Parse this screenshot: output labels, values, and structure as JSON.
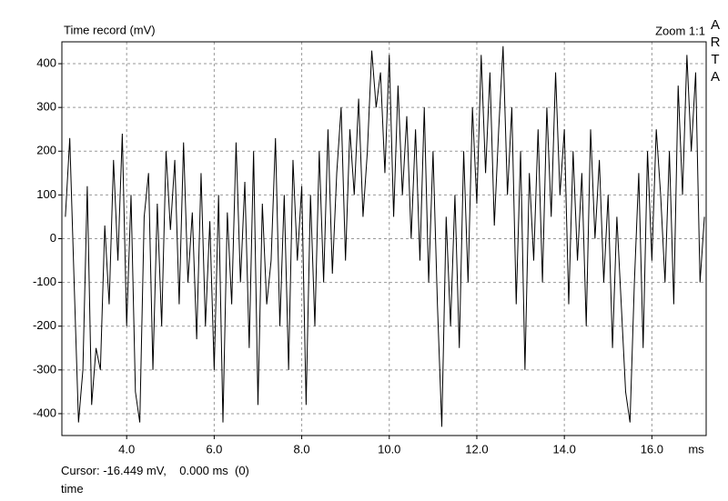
{
  "chart_data": {
    "type": "line",
    "title": "Time record (mV)",
    "zoom_label": "Zoom 1:1",
    "brand": "ARTA",
    "x_unit": "ms",
    "cursor_text": "Cursor: -16.449 mV,    0.000 ms  (0)",
    "mode_label": "time",
    "color": "#000000",
    "grid": true,
    "xlim": [
      2.52,
      17.24
    ],
    "ylim": [
      -450,
      450
    ],
    "xticks": [
      {
        "value": 4,
        "label": "4.0"
      },
      {
        "value": 6,
        "label": "6.0"
      },
      {
        "value": 8,
        "label": "8.0"
      },
      {
        "value": 10,
        "label": "10.0"
      },
      {
        "value": 12,
        "label": "12.0"
      },
      {
        "value": 14,
        "label": "14.0"
      },
      {
        "value": 16,
        "label": "16.0"
      }
    ],
    "yticks": [
      -400,
      -300,
      -200,
      -100,
      0,
      100,
      200,
      300,
      400
    ],
    "x": [
      2.6,
      2.7,
      2.8,
      2.9,
      3.0,
      3.1,
      3.2,
      3.3,
      3.4,
      3.5,
      3.6,
      3.7,
      3.8,
      3.9,
      4.0,
      4.1,
      4.2,
      4.3,
      4.4,
      4.5,
      4.6,
      4.7,
      4.8,
      4.9,
      5.0,
      5.1,
      5.2,
      5.3,
      5.4,
      5.5,
      5.6,
      5.7,
      5.8,
      5.9,
      6.0,
      6.1,
      6.2,
      6.3,
      6.4,
      6.5,
      6.6,
      6.7,
      6.8,
      6.9,
      7.0,
      7.1,
      7.2,
      7.3,
      7.4,
      7.5,
      7.6,
      7.7,
      7.8,
      7.9,
      8.0,
      8.1,
      8.2,
      8.3,
      8.4,
      8.5,
      8.6,
      8.7,
      8.8,
      8.9,
      9.0,
      9.1,
      9.2,
      9.3,
      9.4,
      9.5,
      9.6,
      9.7,
      9.8,
      9.9,
      10.0,
      10.1,
      10.2,
      10.3,
      10.4,
      10.5,
      10.6,
      10.7,
      10.8,
      10.9,
      11.0,
      11.1,
      11.2,
      11.3,
      11.4,
      11.5,
      11.6,
      11.7,
      11.8,
      11.9,
      12.0,
      12.1,
      12.2,
      12.3,
      12.4,
      12.5,
      12.6,
      12.7,
      12.8,
      12.9,
      13.0,
      13.1,
      13.2,
      13.3,
      13.4,
      13.5,
      13.6,
      13.7,
      13.8,
      13.9,
      14.0,
      14.1,
      14.2,
      14.3,
      14.4,
      14.5,
      14.6,
      14.7,
      14.8,
      14.9,
      15.0,
      15.1,
      15.2,
      15.3,
      15.4,
      15.5,
      15.6,
      15.7,
      15.8,
      15.9,
      16.0,
      16.1,
      16.2,
      16.3,
      16.4,
      16.5,
      16.6,
      16.7,
      16.8,
      16.9,
      17.0,
      17.1,
      17.2
    ],
    "values": [
      50,
      230,
      -100,
      -420,
      -300,
      120,
      -380,
      -250,
      -300,
      30,
      -150,
      180,
      -50,
      240,
      -200,
      100,
      -350,
      -420,
      50,
      150,
      -300,
      80,
      -200,
      200,
      20,
      180,
      -150,
      220,
      -100,
      60,
      -230,
      150,
      -200,
      40,
      -300,
      100,
      -420,
      60,
      -150,
      220,
      -100,
      130,
      -250,
      200,
      -380,
      80,
      -150,
      -50,
      230,
      -200,
      100,
      -300,
      180,
      -50,
      120,
      -380,
      100,
      -200,
      200,
      -100,
      250,
      -80,
      150,
      300,
      -50,
      250,
      100,
      320,
      50,
      200,
      430,
      300,
      380,
      150,
      420,
      50,
      350,
      100,
      280,
      0,
      250,
      -50,
      300,
      -100,
      200,
      -150,
      -430,
      50,
      -200,
      100,
      -250,
      200,
      -100,
      300,
      80,
      420,
      150,
      380,
      30,
      250,
      440,
      100,
      300,
      -150,
      200,
      -300,
      150,
      -50,
      250,
      -100,
      300,
      50,
      380,
      100,
      250,
      -150,
      200,
      -50,
      150,
      -200,
      250,
      0,
      180,
      -100,
      100,
      -250,
      50,
      -150,
      -350,
      -420,
      -100,
      150,
      -250,
      200,
      -50,
      250,
      100,
      -100,
      200,
      -150,
      350,
      100,
      420,
      200,
      380,
      -100,
      50
    ]
  }
}
